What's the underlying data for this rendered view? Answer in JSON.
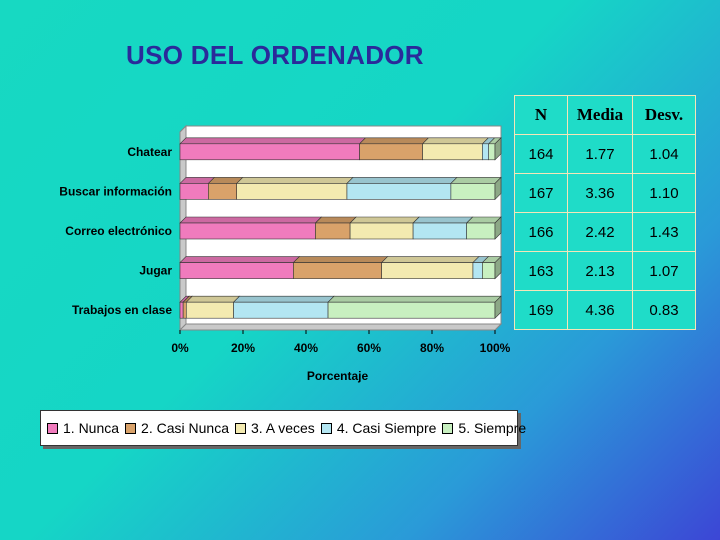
{
  "slide": {
    "title": "USO DEL ORDENADOR"
  },
  "chart_data": {
    "type": "bar",
    "orientation": "horizontal",
    "stacked": true,
    "normalized_percent": true,
    "title": "",
    "xlabel": "Porcentaje",
    "ylabel": "",
    "xlim": [
      0,
      100
    ],
    "x_ticks": [
      "0%",
      "20%",
      "40%",
      "60%",
      "80%",
      "100%"
    ],
    "categories": [
      "Chatear",
      "Buscar información",
      "Correo electrónico",
      "Jugar",
      "Trabajos en clase"
    ],
    "series": [
      {
        "name": "1. Nunca",
        "color": "#f07bbd",
        "values": [
          57,
          9,
          43,
          36,
          1
        ]
      },
      {
        "name": "2. Casi Nunca",
        "color": "#d9a26a",
        "values": [
          20,
          9,
          11,
          28,
          1
        ]
      },
      {
        "name": "3. A veces",
        "color": "#f3eab0",
        "values": [
          19,
          35,
          20,
          29,
          15
        ]
      },
      {
        "name": "4. Casi Siempre",
        "color": "#b3e6f2",
        "values": [
          2,
          33,
          17,
          3,
          30
        ]
      },
      {
        "name": "5. Siempre",
        "color": "#c8f0c0",
        "values": [
          2,
          14,
          9,
          4,
          53
        ]
      }
    ],
    "legend_position": "bottom"
  },
  "stats_table": {
    "headers": [
      "N",
      "Media",
      "Desv."
    ],
    "rows": [
      [
        "164",
        "1.77",
        "1.04"
      ],
      [
        "167",
        "3.36",
        "1.10"
      ],
      [
        "166",
        "2.42",
        "1.43"
      ],
      [
        "163",
        "2.13",
        "1.07"
      ],
      [
        "169",
        "4.36",
        "0.83"
      ]
    ]
  }
}
